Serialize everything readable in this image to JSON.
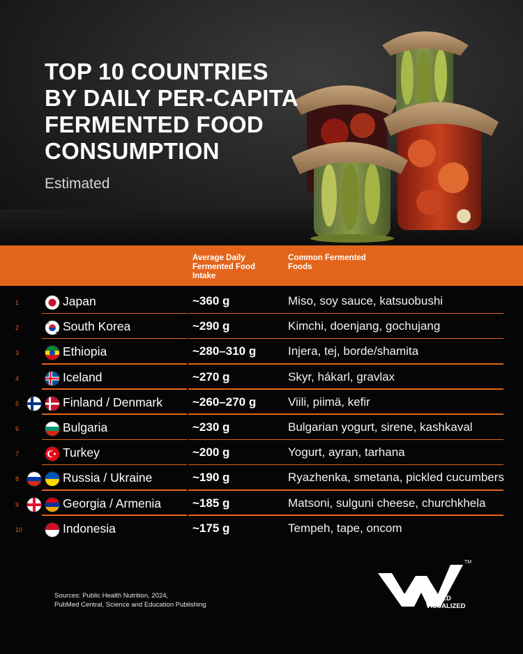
{
  "header": {
    "title_lines": [
      "TOP 10 COUNTRIES",
      "BY DAILY PER-CAPITA",
      "FERMENTED FOOD",
      "CONSUMPTION"
    ],
    "subtitle": "Estimated"
  },
  "table": {
    "col_intake": "Average Daily Fermented Food Intake",
    "col_foods": "Common Fermented Foods",
    "accent_color": "#e3651c",
    "rows": [
      {
        "rank": "1",
        "country": "Japan",
        "intake": "~360 g",
        "foods": "Miso, soy sauce, katsuobushi",
        "flags": [
          "japan-flag"
        ]
      },
      {
        "rank": "2",
        "country": "South Korea",
        "intake": "~290 g",
        "foods": "Kimchi, doenjang, gochujang",
        "flags": [
          "south-korea-flag"
        ]
      },
      {
        "rank": "3",
        "country": "Ethiopia",
        "intake": "~280–310 g",
        "foods": "Injera, tej, borde/shamita",
        "flags": [
          "ethiopia-flag"
        ]
      },
      {
        "rank": "4",
        "country": "Iceland",
        "intake": "~270 g",
        "foods": "Skyr, hákarl, gravlax",
        "flags": [
          "iceland-flag"
        ]
      },
      {
        "rank": "5",
        "country": "Finland / Denmark",
        "intake": "~260–270 g",
        "foods": "Viili, piimä, kefir",
        "flags": [
          "finland-flag",
          "denmark-flag"
        ]
      },
      {
        "rank": "6",
        "country": "Bulgaria",
        "intake": "~230 g",
        "foods": "Bulgarian yogurt, sirene, kashkaval",
        "flags": [
          "bulgaria-flag"
        ]
      },
      {
        "rank": "7",
        "country": "Turkey",
        "intake": "~200 g",
        "foods": "Yogurt, ayran, tarhana",
        "flags": [
          "turkey-flag"
        ]
      },
      {
        "rank": "8",
        "country": "Russia / Ukraine",
        "intake": "~190 g",
        "foods": "Ryazhenka, smetana, pickled cucumbers",
        "flags": [
          "russia-flag",
          "ukraine-flag"
        ]
      },
      {
        "rank": "9",
        "country": "Georgia / Armenia",
        "intake": "~185 g",
        "foods": "Matsoni, sulguni cheese, churchkhela",
        "flags": [
          "georgia-flag",
          "armenia-flag"
        ]
      },
      {
        "rank": "10",
        "country": "Indonesia",
        "intake": "~175 g",
        "foods": "Tempeh, tape, oncom",
        "flags": [
          "indonesia-flag"
        ]
      }
    ]
  },
  "footer": {
    "sources_line1": "Sources: Public Health Nutrition, 2024,",
    "sources_line2": "PubMed Central, Science and Education Publishing",
    "logo_line1": "WORLD",
    "logo_line2": "VISUALIZED",
    "logo_mark": "TM"
  }
}
